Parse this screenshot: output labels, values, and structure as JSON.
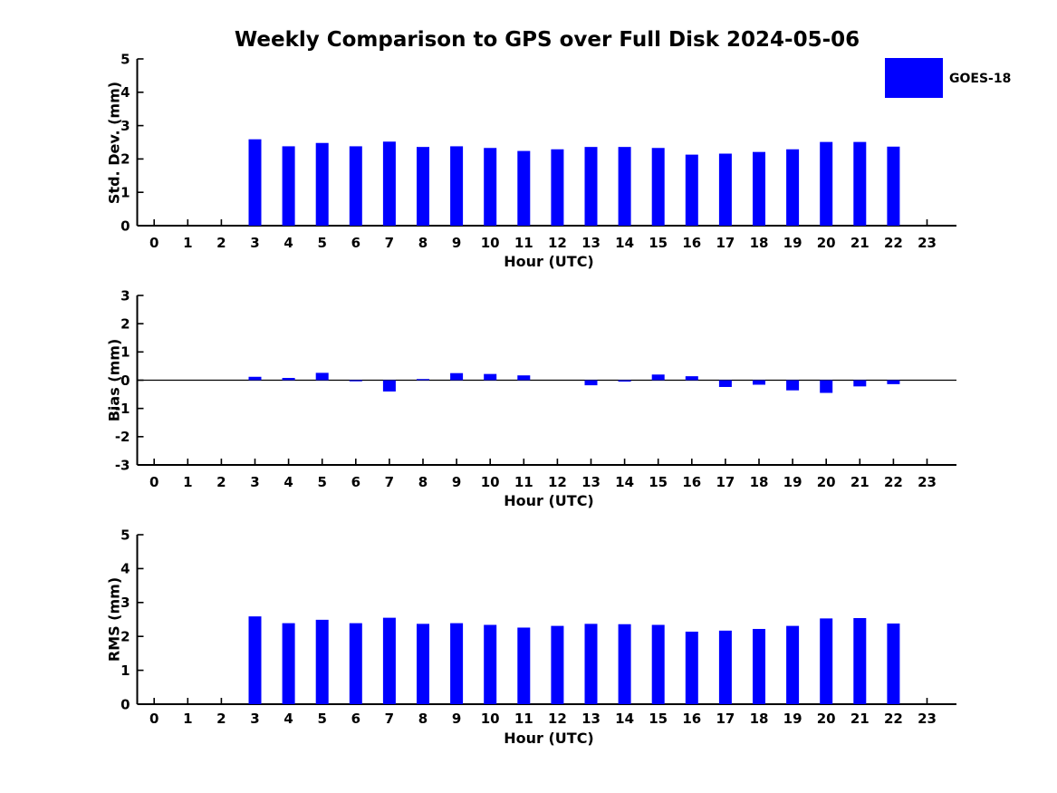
{
  "figure": {
    "title": "Weekly Comparison to GPS over Full Disk 2024-05-06",
    "background_color": "#ffffff",
    "text_color": "#000000",
    "bar_color": "#0000ff"
  },
  "legend": {
    "label": "GOES-18",
    "swatch_color": "#0000ff",
    "position": "top-right"
  },
  "chart_data": [
    {
      "type": "bar",
      "series_name": "GOES-18",
      "ylabel": "Std. Dev. (mm)",
      "xlabel": "Hour (UTC)",
      "ylim": [
        0,
        5
      ],
      "yticks": [
        0,
        1,
        2,
        3,
        4,
        5
      ],
      "grid": false,
      "categories": [
        "0",
        "1",
        "2",
        "3",
        "4",
        "5",
        "6",
        "7",
        "8",
        "9",
        "10",
        "11",
        "12",
        "13",
        "14",
        "15",
        "16",
        "17",
        "18",
        "19",
        "20",
        "21",
        "22",
        "23"
      ],
      "values": [
        null,
        null,
        null,
        2.59,
        2.38,
        2.48,
        2.38,
        2.52,
        2.36,
        2.38,
        2.33,
        2.24,
        2.29,
        2.36,
        2.36,
        2.33,
        2.13,
        2.16,
        2.21,
        2.29,
        2.51,
        2.51,
        2.37,
        null
      ]
    },
    {
      "type": "bar",
      "series_name": "GOES-18",
      "ylabel": "Bias (mm)",
      "xlabel": "Hour (UTC)",
      "ylim": [
        -3,
        3
      ],
      "yticks": [
        -3,
        -2,
        -1,
        0,
        1,
        2,
        3
      ],
      "zero_line": true,
      "grid": false,
      "categories": [
        "0",
        "1",
        "2",
        "3",
        "4",
        "5",
        "6",
        "7",
        "8",
        "9",
        "10",
        "11",
        "12",
        "13",
        "14",
        "15",
        "16",
        "17",
        "18",
        "19",
        "20",
        "21",
        "22",
        "23"
      ],
      "values": [
        null,
        null,
        null,
        0.12,
        0.08,
        0.26,
        -0.04,
        -0.4,
        0.04,
        0.25,
        0.22,
        0.17,
        0.0,
        -0.18,
        -0.05,
        0.2,
        0.14,
        -0.24,
        -0.16,
        -0.36,
        -0.45,
        -0.22,
        -0.14,
        null
      ]
    },
    {
      "type": "bar",
      "series_name": "GOES-18",
      "ylabel": "RMS (mm)",
      "xlabel": "Hour (UTC)",
      "ylim": [
        0,
        5
      ],
      "yticks": [
        0,
        1,
        2,
        3,
        4,
        5
      ],
      "grid": false,
      "categories": [
        "0",
        "1",
        "2",
        "3",
        "4",
        "5",
        "6",
        "7",
        "8",
        "9",
        "10",
        "11",
        "12",
        "13",
        "14",
        "15",
        "16",
        "17",
        "18",
        "19",
        "20",
        "21",
        "22",
        "23"
      ],
      "values": [
        null,
        null,
        null,
        2.59,
        2.39,
        2.49,
        2.39,
        2.55,
        2.37,
        2.39,
        2.34,
        2.26,
        2.31,
        2.37,
        2.36,
        2.34,
        2.14,
        2.17,
        2.22,
        2.31,
        2.53,
        2.54,
        2.38,
        null
      ]
    }
  ]
}
